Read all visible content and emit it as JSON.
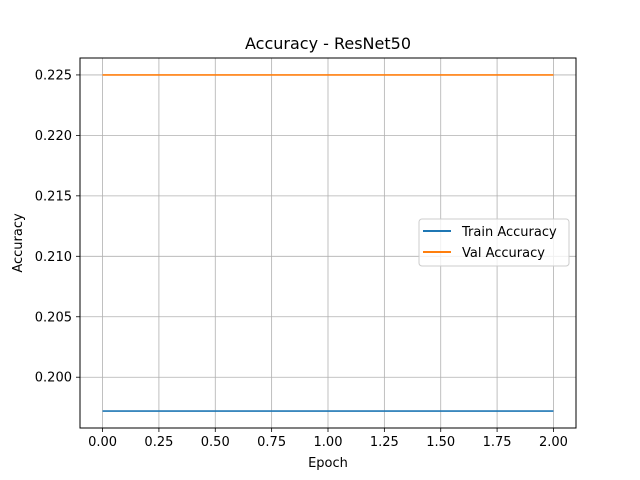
{
  "chart_data": {
    "type": "line",
    "title": "Accuracy - ResNet50",
    "xlabel": "Epoch",
    "ylabel": "Accuracy",
    "xlim": [
      -0.1,
      2.1
    ],
    "ylim": [
      0.1958,
      0.2264
    ],
    "xticks": [
      0.0,
      0.25,
      0.5,
      0.75,
      1.0,
      1.25,
      1.5,
      1.75,
      2.0
    ],
    "xtick_labels": [
      "0.00",
      "0.25",
      "0.50",
      "0.75",
      "1.00",
      "1.25",
      "1.50",
      "1.75",
      "2.00"
    ],
    "yticks": [
      0.2,
      0.205,
      0.21,
      0.215,
      0.22,
      0.225
    ],
    "ytick_labels": [
      "0.200",
      "0.205",
      "0.210",
      "0.215",
      "0.220",
      "0.225"
    ],
    "grid": true,
    "legend_position": "center-right",
    "series": [
      {
        "name": "Train Accuracy",
        "color": "#1f77b4",
        "x": [
          0,
          1,
          2
        ],
        "y": [
          0.1972,
          0.1972,
          0.1972
        ]
      },
      {
        "name": "Val Accuracy",
        "color": "#ff7f0e",
        "x": [
          0,
          1,
          2
        ],
        "y": [
          0.225,
          0.225,
          0.225
        ]
      }
    ]
  }
}
